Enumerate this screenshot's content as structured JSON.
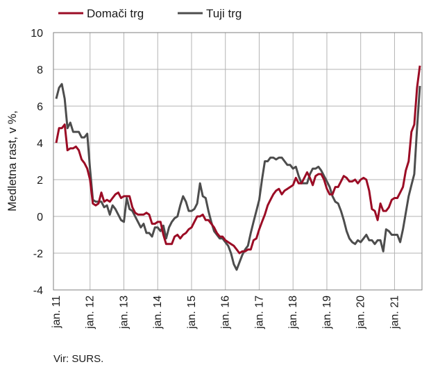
{
  "chart_data": {
    "type": "line",
    "ylabel": "Medletna rast, v %,",
    "ylim": [
      -4,
      10
    ],
    "yticks": [
      -4,
      -2,
      0,
      2,
      4,
      6,
      8,
      10
    ],
    "grid": true,
    "legend_position": "top-left",
    "source": "Vir: SURS.",
    "x_start": "2011-01",
    "x_end": "2021-10",
    "xtick_labels": [
      "jan. 11",
      "jan. 12",
      "jan. 13",
      "jan. 14",
      "jan. 15",
      "jan. 16",
      "jan. 17",
      "jan. 18",
      "jan. 19",
      "jan. 20",
      "jan. 21"
    ],
    "colors": {
      "domaci": "#9b0c25",
      "tuji": "#4d4d4d"
    },
    "series": [
      {
        "name": "Domači trg",
        "values": [
          4.0,
          4.8,
          4.8,
          5.0,
          3.6,
          3.7,
          3.7,
          3.8,
          3.6,
          3.1,
          2.9,
          2.6,
          2.0,
          0.7,
          0.6,
          0.7,
          1.3,
          0.8,
          0.9,
          0.8,
          1.0,
          1.2,
          1.3,
          1.0,
          1.1,
          1.1,
          1.1,
          0.5,
          0.2,
          0.1,
          0.1,
          0.1,
          0.2,
          0.1,
          -0.4,
          -0.4,
          -0.3,
          -0.3,
          -1.0,
          -1.5,
          -1.5,
          -1.5,
          -1.1,
          -1.0,
          -1.2,
          -1.0,
          -0.9,
          -0.7,
          -0.6,
          -0.3,
          0.0,
          0.0,
          0.1,
          -0.2,
          -0.2,
          -0.4,
          -0.6,
          -0.9,
          -1.1,
          -1.1,
          -1.3,
          -1.4,
          -1.5,
          -1.6,
          -1.8,
          -2.0,
          -1.9,
          -1.9,
          -1.8,
          -1.8,
          -1.3,
          -1.2,
          -0.7,
          -0.3,
          0.1,
          0.6,
          0.9,
          1.2,
          1.4,
          1.5,
          1.2,
          1.4,
          1.5,
          1.6,
          1.7,
          2.1,
          1.8,
          1.8,
          2.1,
          2.4,
          2.1,
          1.7,
          2.2,
          2.3,
          2.3,
          2.0,
          1.5,
          1.2,
          1.2,
          1.6,
          1.6,
          1.9,
          2.2,
          2.1,
          1.9,
          1.9,
          2.0,
          1.8,
          2.0,
          2.1,
          2.0,
          1.4,
          0.4,
          0.3,
          -0.2,
          0.7,
          0.3,
          0.3,
          0.5,
          0.9,
          1.0,
          1.0,
          1.3,
          1.6,
          2.5,
          3.0,
          4.6,
          5.0,
          7.0,
          8.2
        ]
      },
      {
        "name": "Tuji trg",
        "values": [
          6.4,
          7.0,
          7.2,
          6.4,
          4.8,
          5.1,
          4.6,
          4.6,
          4.6,
          4.3,
          4.3,
          4.5,
          2.6,
          0.9,
          0.8,
          0.8,
          0.8,
          0.5,
          0.6,
          0.1,
          0.6,
          0.4,
          0.1,
          -0.2,
          -0.3,
          1.0,
          0.4,
          0.3,
          0.0,
          -0.3,
          -0.6,
          -0.4,
          -0.9,
          -0.9,
          -1.1,
          -0.6,
          -0.6,
          -0.8,
          -0.5,
          -1.2,
          -0.6,
          -0.3,
          -0.1,
          0.0,
          0.6,
          1.1,
          0.8,
          0.3,
          0.3,
          0.4,
          0.7,
          1.8,
          1.1,
          1.0,
          0.3,
          -0.3,
          -0.8,
          -1.0,
          -1.2,
          -1.2,
          -1.4,
          -1.6,
          -2.0,
          -2.6,
          -2.9,
          -2.5,
          -2.1,
          -1.8,
          -1.6,
          -0.9,
          -0.3,
          0.3,
          0.9,
          2.0,
          3.0,
          3.0,
          3.2,
          3.2,
          3.1,
          3.2,
          3.2,
          3.0,
          2.8,
          2.8,
          2.6,
          2.7,
          2.2,
          1.8,
          1.8,
          1.8,
          2.3,
          2.6,
          2.6,
          2.7,
          2.5,
          2.2,
          1.9,
          1.6,
          1.1,
          0.8,
          0.7,
          0.3,
          -0.2,
          -0.8,
          -1.2,
          -1.4,
          -1.5,
          -1.3,
          -1.4,
          -1.2,
          -1.0,
          -1.3,
          -1.3,
          -1.5,
          -1.3,
          -1.3,
          -1.9,
          -0.7,
          -0.8,
          -1.0,
          -1.0,
          -1.0,
          -1.4,
          -0.7,
          0.2,
          1.1,
          1.7,
          2.3,
          4.8,
          7.1
        ]
      }
    ]
  }
}
